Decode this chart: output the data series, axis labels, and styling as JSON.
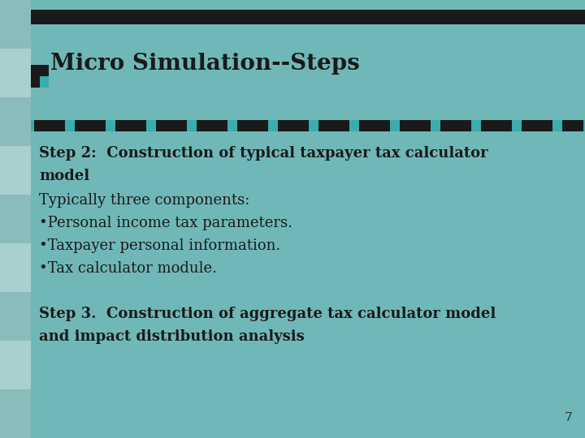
{
  "title": "Micro Simulation--Steps",
  "background_color": "#70b8b8",
  "top_bar_color": "#1a1a1a",
  "dashed_teal_color": "#3aadad",
  "dashed_black_color": "#1a1a1a",
  "sidebar_colors": [
    "#8bbcbc",
    "#aacfcf"
  ],
  "icon_black": "#1a1a1a",
  "icon_teal": "#3aadad",
  "title_fontsize": 20,
  "step2_line1": "Step 2:  Construction of typical taxpayer tax calculator",
  "step2_line2": "model",
  "normal_lines": [
    "Typically three components:",
    "•Personal income tax parameters.",
    "•Taxpayer personal information.",
    "•Tax calculator module."
  ],
  "step3_line1": "Step 3.  Construction of aggregate tax calculator model",
  "step3_line2": "and impact distribution analysis",
  "page_number": "7",
  "text_color": "#1a1a1a",
  "font_family": "DejaVu Serif"
}
